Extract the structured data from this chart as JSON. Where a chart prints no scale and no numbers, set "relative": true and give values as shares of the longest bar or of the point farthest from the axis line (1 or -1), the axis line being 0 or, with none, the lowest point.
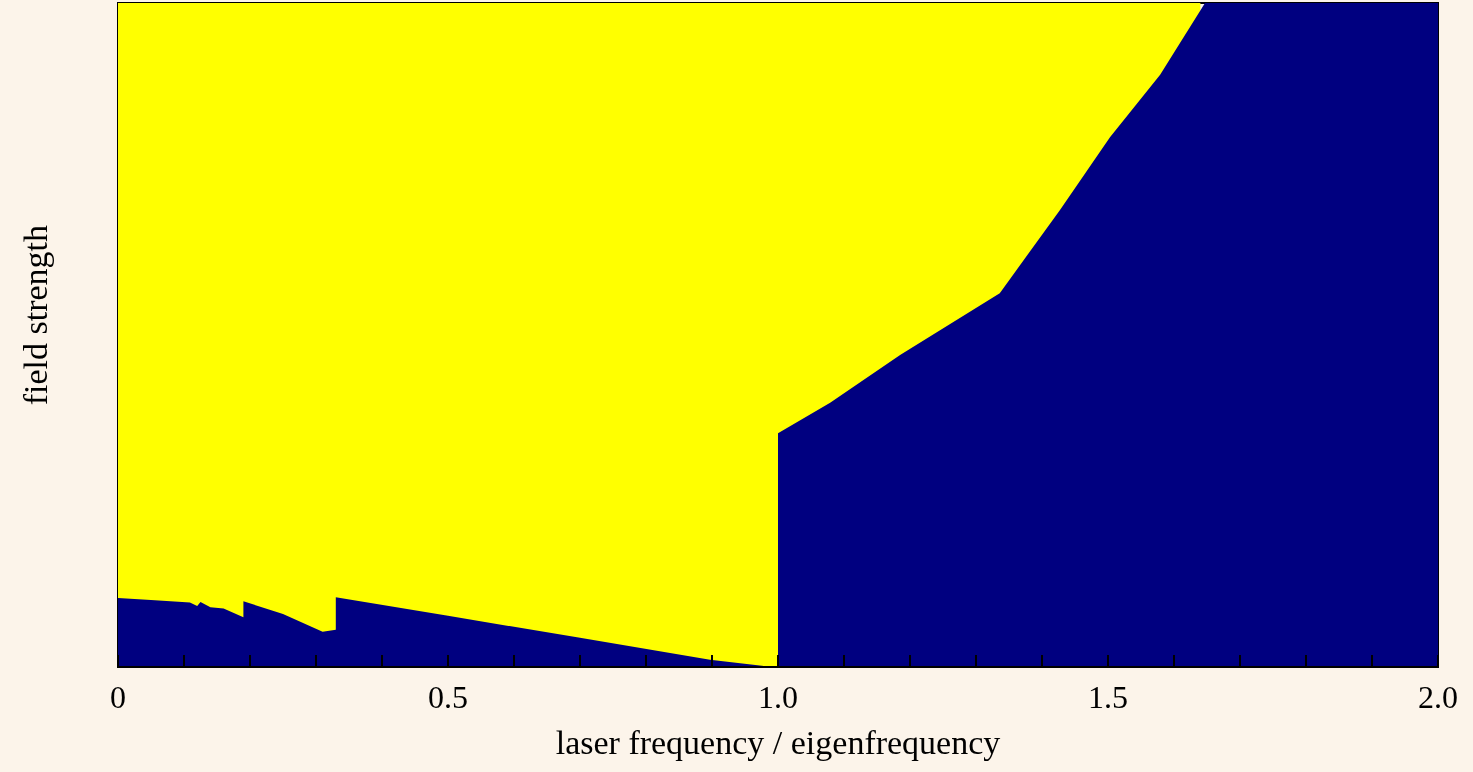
{
  "chart_data": {
    "type": "area",
    "relative": true,
    "xlabel": "laser frequency / eigenfrequency",
    "ylabel": "field strength",
    "xlim": [
      0,
      2
    ],
    "xticks": [
      0,
      {
        "value": 0.1,
        "label": null
      },
      {
        "value": 0.2,
        "label": null
      },
      {
        "value": 0.3,
        "label": null
      },
      {
        "value": 0.4,
        "label": null
      },
      0.5,
      {
        "value": 0.6,
        "label": null
      },
      {
        "value": 0.7,
        "label": null
      },
      {
        "value": 0.8,
        "label": null
      },
      {
        "value": 0.9,
        "label": null
      },
      {
        "value": 1,
        "label": "1.0"
      },
      {
        "value": 1.1,
        "label": null
      },
      {
        "value": 1.2,
        "label": null
      },
      {
        "value": 1.3,
        "label": null
      },
      {
        "value": 1.4,
        "label": null
      },
      1.5,
      {
        "value": 1.6,
        "label": null
      },
      {
        "value": 1.7,
        "label": null
      },
      {
        "value": 1.8,
        "label": null
      },
      {
        "value": 1.9,
        "label": null
      },
      {
        "value": 2,
        "label": "2.0"
      }
    ],
    "series": [
      {
        "color": "#ffff00",
        "x": [
          0,
          1.64
        ],
        "values": [
          1,
          1
        ]
      },
      {
        "color": "#000080",
        "x": [
          0,
          0.05,
          0.109,
          0.12,
          0.125,
          0.14,
          0.16,
          0.19,
          0.19,
          0.25,
          0.31,
          0.33,
          0.33,
          0.5,
          0.7,
          0.897,
          0.99,
          1.0,
          1.0,
          1.079,
          1.185,
          1.336,
          1.427,
          1.503,
          1.579,
          1.647,
          2.0
        ],
        "values": [
          0.104,
          0.101,
          0.097,
          0.092,
          0.098,
          0.09,
          0.088,
          0.075,
          0.099,
          0.08,
          0.053,
          0.056,
          0.105,
          0.077,
          0.044,
          0.011,
          0,
          0,
          0.352,
          0.398,
          0.47,
          0.563,
          0.688,
          0.798,
          0.892,
          1.0,
          1.0
        ]
      }
    ]
  }
}
